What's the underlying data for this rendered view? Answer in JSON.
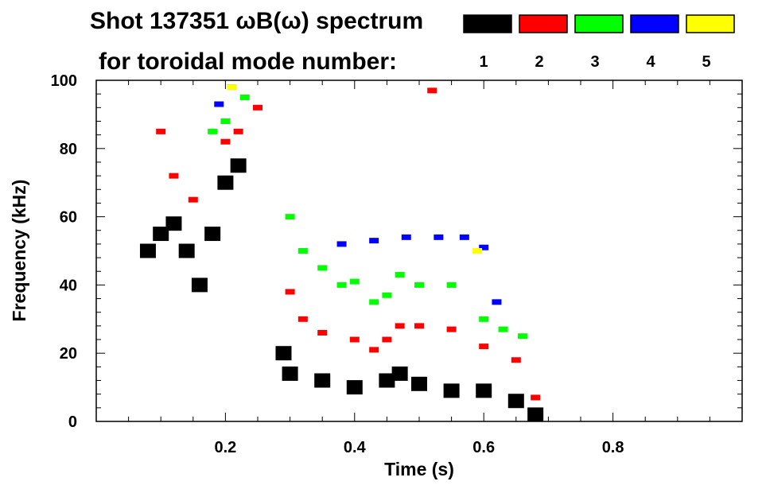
{
  "chart_data": {
    "type": "heatmap",
    "title_line1": "Shot 137351 ωB(ω) spectrum",
    "title_line2": "for toroidal mode number:",
    "xlabel": "Time (s)",
    "ylabel": "Frequency (kHz)",
    "xlim": [
      0.0,
      1.0
    ],
    "ylim": [
      0,
      100
    ],
    "x_ticks": [
      0.2,
      0.4,
      0.6,
      0.8
    ],
    "x_tick_labels": [
      "0.2",
      "0.4",
      "0.6",
      "0.8"
    ],
    "y_ticks": [
      0,
      20,
      40,
      60,
      80,
      100
    ],
    "y_tick_labels": [
      "0",
      "20",
      "40",
      "60",
      "80",
      "100"
    ],
    "legend": [
      {
        "label": "1",
        "color": "#000000"
      },
      {
        "label": "2",
        "color": "#ff0000"
      },
      {
        "label": "3",
        "color": "#00ff00"
      },
      {
        "label": "4",
        "color": "#0000ff"
      },
      {
        "label": "5",
        "color": "#ffff00"
      }
    ],
    "series": [
      {
        "name": "n=1",
        "color": "#000000",
        "points": [
          [
            0.08,
            50
          ],
          [
            0.1,
            55
          ],
          [
            0.12,
            58
          ],
          [
            0.14,
            50
          ],
          [
            0.16,
            40
          ],
          [
            0.18,
            55
          ],
          [
            0.2,
            70
          ],
          [
            0.22,
            75
          ],
          [
            0.29,
            20
          ],
          [
            0.3,
            14
          ],
          [
            0.35,
            12
          ],
          [
            0.4,
            10
          ],
          [
            0.45,
            12
          ],
          [
            0.47,
            14
          ],
          [
            0.5,
            11
          ],
          [
            0.55,
            9
          ],
          [
            0.6,
            9
          ],
          [
            0.65,
            6
          ],
          [
            0.68,
            2
          ]
        ]
      },
      {
        "name": "n=2",
        "color": "#ff0000",
        "points": [
          [
            0.1,
            85
          ],
          [
            0.12,
            72
          ],
          [
            0.15,
            65
          ],
          [
            0.2,
            82
          ],
          [
            0.22,
            85
          ],
          [
            0.25,
            92
          ],
          [
            0.3,
            38
          ],
          [
            0.32,
            30
          ],
          [
            0.35,
            26
          ],
          [
            0.4,
            24
          ],
          [
            0.43,
            21
          ],
          [
            0.45,
            24
          ],
          [
            0.47,
            28
          ],
          [
            0.5,
            28
          ],
          [
            0.55,
            27
          ],
          [
            0.6,
            22
          ],
          [
            0.65,
            18
          ],
          [
            0.68,
            7
          ],
          [
            0.52,
            97
          ]
        ]
      },
      {
        "name": "n=3",
        "color": "#00ff00",
        "points": [
          [
            0.18,
            85
          ],
          [
            0.2,
            88
          ],
          [
            0.23,
            95
          ],
          [
            0.3,
            60
          ],
          [
            0.32,
            50
          ],
          [
            0.35,
            45
          ],
          [
            0.38,
            40
          ],
          [
            0.4,
            41
          ],
          [
            0.43,
            35
          ],
          [
            0.45,
            37
          ],
          [
            0.47,
            43
          ],
          [
            0.5,
            40
          ],
          [
            0.55,
            40
          ],
          [
            0.6,
            30
          ],
          [
            0.63,
            27
          ],
          [
            0.66,
            25
          ]
        ]
      },
      {
        "name": "n=4",
        "color": "#0000ff",
        "points": [
          [
            0.19,
            93
          ],
          [
            0.21,
            98
          ],
          [
            0.38,
            52
          ],
          [
            0.43,
            53
          ],
          [
            0.48,
            54
          ],
          [
            0.53,
            54
          ],
          [
            0.57,
            54
          ],
          [
            0.6,
            51
          ],
          [
            0.62,
            35
          ]
        ]
      },
      {
        "name": "n=5",
        "color": "#ffff00",
        "points": [
          [
            0.21,
            98
          ],
          [
            0.59,
            50
          ]
        ]
      }
    ]
  }
}
